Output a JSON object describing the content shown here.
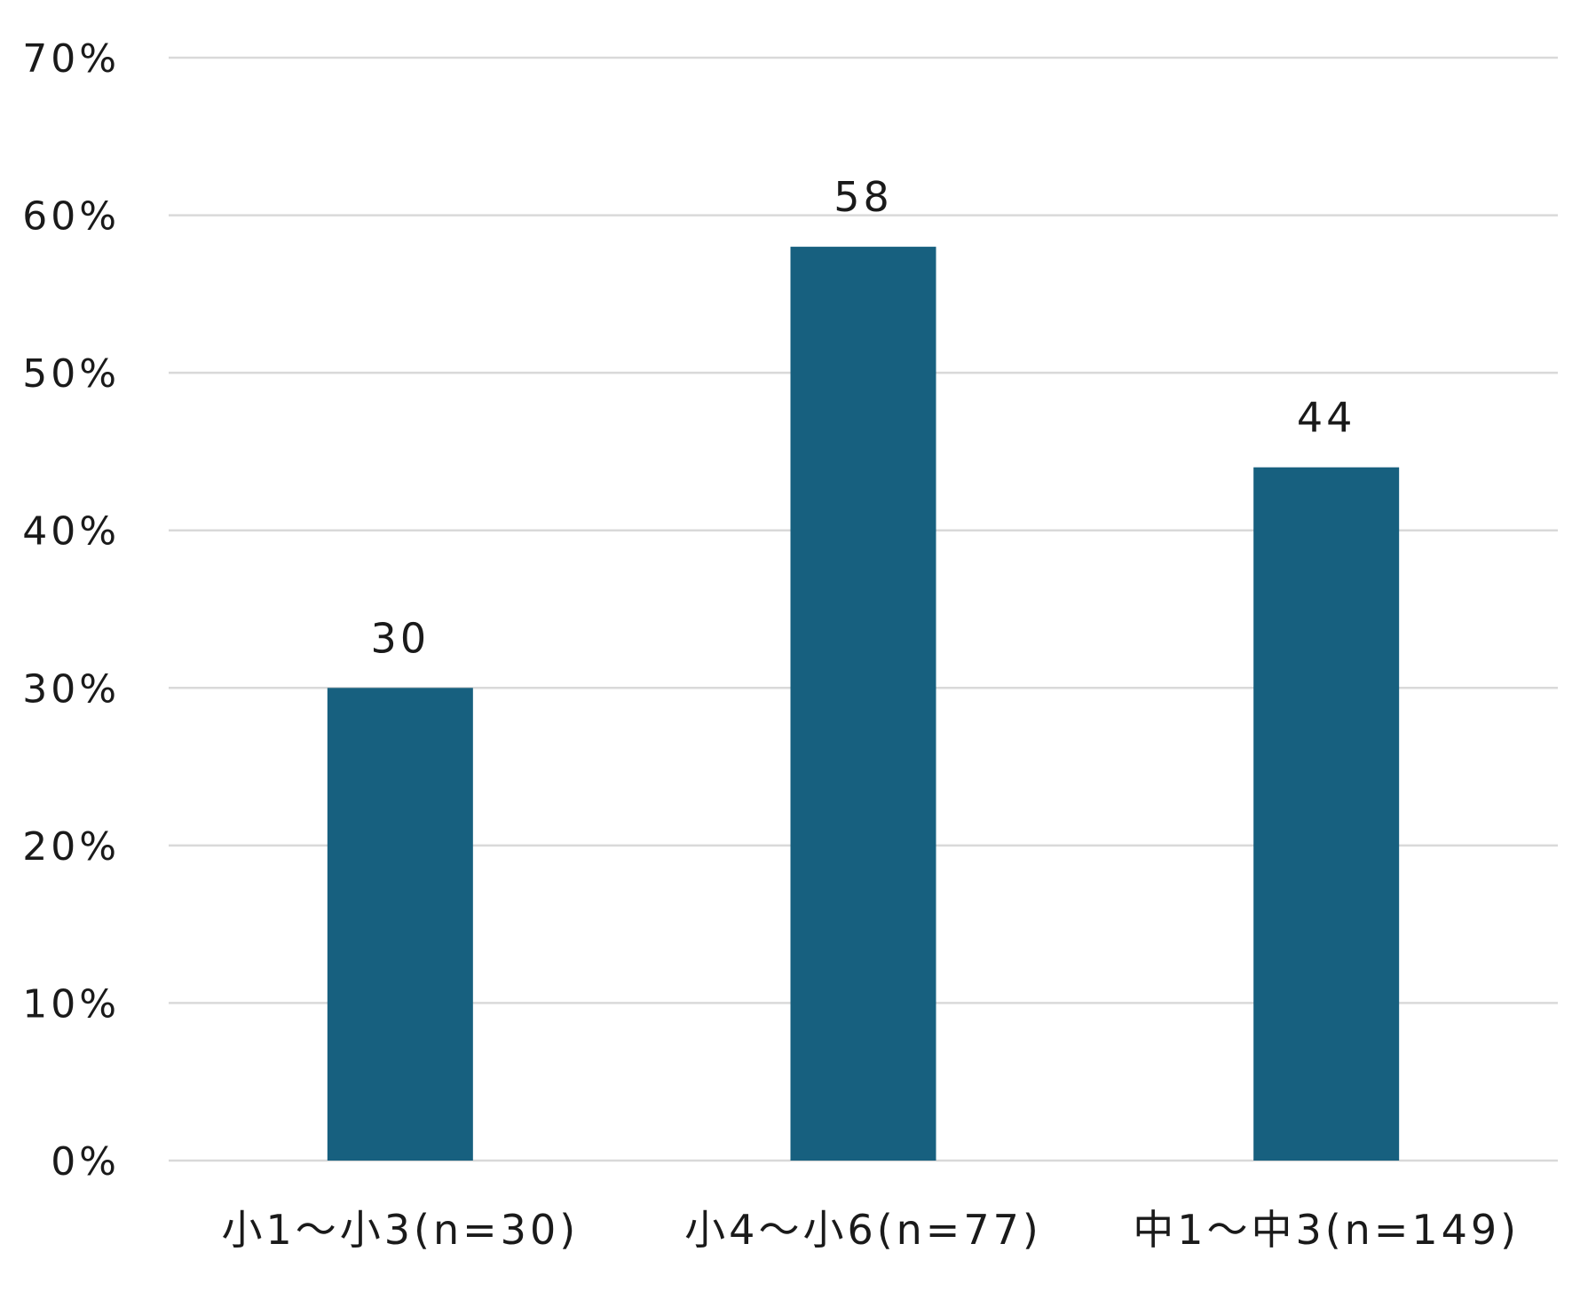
{
  "chart_data": {
    "type": "bar",
    "categories": [
      "小1〜小3(n=30)",
      "小4〜小6(n=77)",
      "中1〜中3(n=149)"
    ],
    "values": [
      30,
      58,
      44
    ],
    "data_labels": [
      "30",
      "58",
      "44"
    ],
    "ylim": [
      0,
      70
    ],
    "yticks": [
      0,
      10,
      20,
      30,
      40,
      50,
      60,
      70
    ],
    "ytick_labels": [
      "0%",
      "10%",
      "20%",
      "30%",
      "40%",
      "50%",
      "60%",
      "70%"
    ],
    "bar_color": "#17607f",
    "grid": true,
    "grid_color": "#d9d9d9",
    "legend": "none"
  }
}
